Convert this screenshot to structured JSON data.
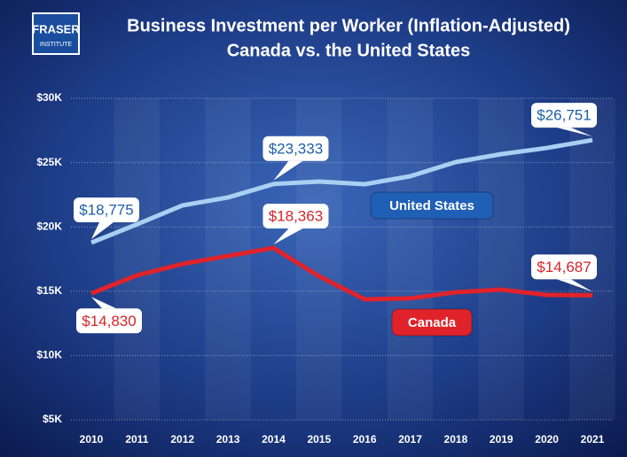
{
  "chart_data": {
    "type": "line",
    "title": "Business Investment per Worker (Inflation-Adjusted)",
    "subtitle": "Canada vs. the United States",
    "logo": {
      "line1": "FRASER",
      "line2": "INSTITUTE"
    },
    "categories": [
      "2010",
      "2011",
      "2012",
      "2013",
      "2014",
      "2015",
      "2016",
      "2017",
      "2018",
      "2019",
      "2020",
      "2021"
    ],
    "series": [
      {
        "name": "United States",
        "color": "#a9cff2",
        "label_color": "#1f5fa8",
        "values": [
          18775,
          20200,
          21670,
          22290,
          23333,
          23530,
          23320,
          23940,
          25040,
          25660,
          26140,
          26751
        ],
        "value_labels": [
          "$18,775",
          null,
          null,
          null,
          "$23,333",
          null,
          null,
          null,
          null,
          null,
          null,
          "$26,751"
        ]
      },
      {
        "name": "Canada",
        "color": "#e0232b",
        "label_color": "#d8232a",
        "values": [
          14830,
          16230,
          17120,
          17740,
          18363,
          16160,
          14370,
          14440,
          14920,
          15120,
          14710,
          14687
        ],
        "value_labels": [
          "$14,830",
          null,
          null,
          null,
          "$18,363",
          null,
          null,
          null,
          null,
          null,
          null,
          "$14,687"
        ]
      }
    ],
    "ylim": [
      5000,
      30000
    ],
    "yticks": [
      {
        "value": 5000,
        "label": "$5K"
      },
      {
        "value": 10000,
        "label": "$10K"
      },
      {
        "value": 15000,
        "label": "$15K"
      },
      {
        "value": 20000,
        "label": "$20K"
      },
      {
        "value": 25000,
        "label": "$25K"
      },
      {
        "value": 30000,
        "label": "$30K"
      }
    ],
    "grid": true
  }
}
